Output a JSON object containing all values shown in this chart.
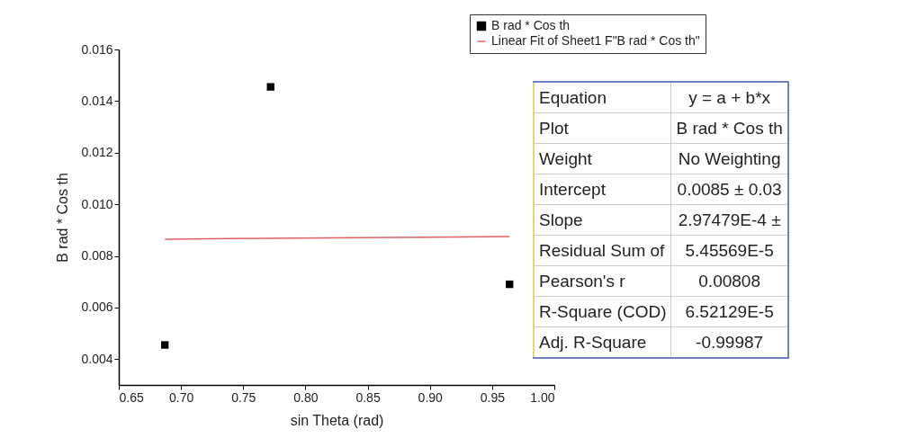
{
  "chart_data": {
    "type": "scatter",
    "xlabel": "sin Theta (rad)",
    "ylabel": "B rad * Cos th",
    "xlim": [
      0.65,
      1.0
    ],
    "xticks": [
      0.65,
      {
        "value": 0.7,
        "label": "0.70"
      },
      0.75,
      {
        "value": 0.8,
        "label": "0.80"
      },
      0.85,
      {
        "value": 0.9,
        "label": "0.90"
      },
      0.95,
      {
        "value": 1.0,
        "label": "1.00"
      }
    ],
    "ylim": [
      0.003,
      0.016
    ],
    "yticks": [
      0.004,
      0.006,
      0.008,
      {
        "value": 0.01,
        "label": "0.010"
      },
      0.012,
      0.014,
      0.016
    ],
    "legend": "top right",
    "grid": false,
    "series": [
      {
        "name": "B rad * Cos th",
        "marker": "square",
        "color": "#000000",
        "x": [
          0.687,
          0.772,
          0.964
        ],
        "values": [
          0.00455,
          0.01455,
          0.0069
        ]
      },
      {
        "name": "Linear Fit of Sheet1 F\"B rad * Cos th\"",
        "type": "line",
        "color": "#e06060",
        "x": [
          0.687,
          0.964
        ],
        "values": [
          0.00865,
          0.00875
        ]
      }
    ],
    "annotations": [
      "Equation",
      "y = a + b*x",
      "Plot",
      "B rad * Cos th",
      "Weight",
      "No Weighting",
      "Intercept",
      "0.0085 ± 0.03",
      "Slope",
      "2.97479E-4 ±",
      "Residual Sum of",
      "5.45569E-5",
      "Pearson's r",
      "0.00808",
      "R-Square (COD)",
      "6.52129E-5",
      "Adj. R-Square",
      "-0.99987"
    ]
  }
}
